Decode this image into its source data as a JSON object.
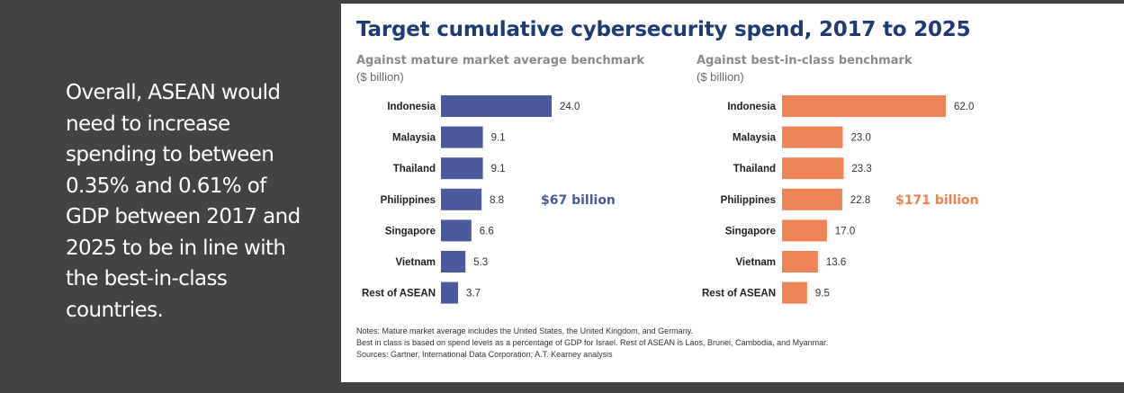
{
  "left_text": "Overall, ASEAN would need to increase spending to between 0.35% and 0.61% of GDP between 2017 and 2025 to be in line with the best-in-class countries.",
  "card": {
    "title": "Target cumulative cybersecurity spend, 2017 to 2025",
    "notes": [
      "Notes: Mature market average includes the United States, the United Kingdom, and Germany.",
      "Best in class is based on spend levels as a percentage of GDP for Israel. Rest of ASEAN is Laos, Brunei, Cambodia, and Myanmar.",
      "Sources: Gartner, International Data Corporation; A.T. Kearney analysis"
    ]
  },
  "colors": {
    "mature": "#4a5a9c",
    "best": "#ee8456",
    "title": "#1f3b73"
  },
  "chart_data": [
    {
      "type": "bar",
      "orientation": "horizontal",
      "title": "Against mature market average benchmark",
      "unit": "($ billion)",
      "categories": [
        "Indonesia",
        "Malaysia",
        "Thailand",
        "Philippines",
        "Singapore",
        "Vietnam",
        "Rest of ASEAN"
      ],
      "values": [
        24.0,
        9.1,
        9.1,
        8.8,
        6.6,
        5.3,
        3.7
      ],
      "value_labels": [
        "24.0",
        "9.1",
        "9.1",
        "8.8",
        "6.6",
        "5.3",
        "3.7"
      ],
      "total": "$67 billion",
      "color": "#4a5a9c"
    },
    {
      "type": "bar",
      "orientation": "horizontal",
      "title": "Against best-in-class benchmark",
      "unit": "($ billion)",
      "categories": [
        "Indonesia",
        "Malaysia",
        "Thailand",
        "Philippines",
        "Singapore",
        "Vietnam",
        "Rest of ASEAN"
      ],
      "values": [
        62.0,
        23.0,
        23.3,
        22.8,
        17.0,
        13.6,
        9.5
      ],
      "value_labels": [
        "62.0",
        "23.0",
        "23.3",
        "22.8",
        "17.0",
        "13.6",
        "9.5"
      ],
      "total": "$171 billion",
      "color": "#ee8456"
    }
  ]
}
